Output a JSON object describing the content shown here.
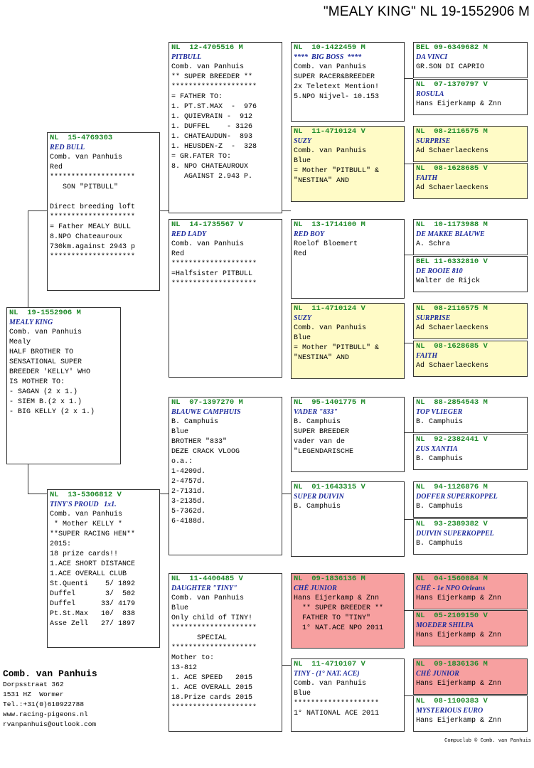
{
  "title": "\"MEALY KING\"  NL  19-1552906 M",
  "boxes": {
    "subject": {
      "ring": "NL  19-1552906 M",
      "name": "MEALY KING",
      "lines": [
        "Comb. van Panhuis",
        "Mealy",
        "HALF BROTHER TO",
        "SENSATIONAL SUPER",
        "BREEDER 'KELLY' WHO",
        "IS MOTHER TO:",
        "- SAGAN (2 x 1.)",
        "- SIEM B.(2 x 1.)",
        "- BIG KELLY (2 x 1.)"
      ]
    },
    "sire": {
      "ring": "NL  15-4769303",
      "name": "RED BULL",
      "lines": [
        "Comb. van Panhuis",
        "Red",
        "********************",
        "   SON \"PITBULL\"",
        "",
        "Direct breeding loft",
        "********************",
        "= Father MEALY BULL",
        "8.NPO Chateauroux",
        "730km.against 2943 p",
        "********************"
      ]
    },
    "dam": {
      "ring": "NL  13-5306812 V",
      "name": "TINY'S PROUD   1x1.",
      "lines": [
        "Comb. van Panhuis",
        " * Mother KELLY *",
        "**SUPER RACING HEN**",
        "2015:",
        "18 prize cards!!",
        "1.ACE SHORT DISTANCE",
        "1.ACE OVERALL CLUB",
        "St.Quenti    5/ 1892",
        "Duffel       3/  502",
        "Duffel      33/ 4179",
        "Pt.St.Max   10/  838",
        "Asse Zell   27/ 1897"
      ]
    },
    "ss": {
      "ring": "NL  12-4705516 M",
      "name": "PITBULL",
      "lines": [
        "Comb. van Panhuis",
        "** SUPER BREEDER **",
        "********************",
        "= FATHER TO:",
        "1. PT.ST.MAX  -  976",
        "1. QUIEVRAIN -  912",
        "1. DUFFEL    - 3126",
        "1. CHATEAUDUN-  893",
        "1. HEUSDEN-Z  -  328",
        "= GR.FATER TO:",
        "8. NPO CHATEAUROUX",
        "   AGAINST 2.943 P."
      ]
    },
    "sd": {
      "ring": "NL  14-1735567 V",
      "name": "RED LADY",
      "lines": [
        "Comb. van Panhuis",
        "Red",
        "********************",
        "=Halfsister PITBULL",
        "********************"
      ]
    },
    "ds": {
      "ring": "NL  07-1397270 M",
      "name": "BLAUWE CAMPHUIS",
      "lines": [
        "B. Camphuis",
        "Blue",
        "BROTHER \"833\"",
        "DEZE CRACK VLOOG",
        "o.a.:",
        "1-4209d.",
        "2-4757d.",
        "2-7131d.",
        "3-2135d.",
        "5-7362d.",
        "6-4188d."
      ]
    },
    "dd": {
      "ring": "NL  11-4400485 V",
      "name": "DAUGHTER \"TINY\"",
      "lines": [
        "Comb. van Panhuis",
        "Blue",
        "Only child of TINY!",
        "********************",
        "      SPECIAL",
        "********************",
        "Mother to:",
        "13-812",
        "1. ACE SPEED   2015",
        "1. ACE OVERALL 2015",
        "18.Prize cards 2015",
        "********************"
      ]
    },
    "sss": {
      "ring": "NL  10-1422459 M",
      "name": "****  BIG BOSS  ****",
      "lines": [
        "Comb. van Panhuis",
        "SUPER RACER&BREEDER",
        "2x Teletext Mention!",
        "5.NPO Nijvel- 10.153"
      ]
    },
    "ssd": {
      "ring": "NL  11-4710124 V",
      "name": "SUZY",
      "lines": [
        "Comb. van Panhuis",
        "Blue",
        "= Mother \"PITBULL\" &",
        "\"NESTINA\" AND"
      ]
    },
    "sds": {
      "ring": "NL  13-1714100 M",
      "name": "RED BOY",
      "lines": [
        "Roelof Bloemert",
        "Red"
      ]
    },
    "sdd": {
      "ring": "NL  11-4710124 V",
      "name": "SUZY",
      "lines": [
        "Comb. van Panhuis",
        "Blue",
        "= Mother \"PITBULL\" &",
        "\"NESTINA\" AND"
      ]
    },
    "dss": {
      "ring": "NL  95-1401775 M",
      "name": "VADER \"833\"",
      "lines": [
        "B. Camphuis",
        "SUPER BREEDER",
        "vader van de",
        "\"LEGENDARISCHE"
      ]
    },
    "dsd": {
      "ring": "NL  01-1643315 V",
      "name": "SUPER DUIVIN",
      "lines": [
        "B. Camphuis"
      ]
    },
    "dds": {
      "ring": "NL  09-1836136 M",
      "name": "CHÉ JUNIOR",
      "lines": [
        "Hans Eijerkamp & Znn",
        "  ** SUPER BREEDER **",
        "  FATHER TO \"TINY\"",
        "  1° NAT.ACE NPO 2011"
      ]
    },
    "ddd": {
      "ring": "NL  11-4710107 V",
      "name": "TINY - (1° NAT. ACE)",
      "lines": [
        "Comb. van Panhuis",
        "Blue",
        "********************",
        "1° NATIONAL ACE 2011"
      ]
    },
    "g1": {
      "ring": "BEL 09-6349682 M",
      "name": "DA VINCI",
      "lines": [
        "GR.SON DI CAPRIO"
      ]
    },
    "g2": {
      "ring": "NL  07-1370797 V",
      "name": "ROSULA",
      "lines": [
        "Hans Eijerkamp & Znn"
      ]
    },
    "g3": {
      "ring": "NL  08-2116575 M",
      "name": "SURPRISE",
      "lines": [
        "Ad Schaerlaeckens"
      ]
    },
    "g4": {
      "ring": "NL  08-1628685 V",
      "name": "FAITH",
      "lines": [
        "Ad Schaerlaeckens"
      ]
    },
    "g5": {
      "ring": "NL  10-1173988 M",
      "name": "DE MAKKE BLAUWE",
      "lines": [
        "A. Schra"
      ]
    },
    "g6": {
      "ring": "BEL 11-6332810 V",
      "name": "DE ROOIE 810",
      "lines": [
        "Walter de Rijck"
      ]
    },
    "g7": {
      "ring": "NL  08-2116575 M",
      "name": "SURPRISE",
      "lines": [
        "Ad Schaerlaeckens"
      ]
    },
    "g8": {
      "ring": "NL  08-1628685 V",
      "name": "FAITH",
      "lines": [
        "Ad Schaerlaeckens"
      ]
    },
    "g9": {
      "ring": "NL  88-2854543 M",
      "name": "TOP VLIEGER",
      "lines": [
        "B. Camphuis"
      ]
    },
    "g10": {
      "ring": "NL  92-2382441 V",
      "name": "ZUS XANTIA",
      "lines": [
        "B. Camphuis"
      ]
    },
    "g11": {
      "ring": "NL  94-1126876 M",
      "name": "DOFFER SUPERKOPPEL",
      "lines": [
        "B. Camphuis"
      ]
    },
    "g12": {
      "ring": "NL  93-2389382 V",
      "name": "DUIVIN SUPERKOPPEL",
      "lines": [
        "B. Camphuis"
      ]
    },
    "g13": {
      "ring": "NL  04-1560084 M",
      "name": "CHÉ - 1e NPO Orleans",
      "lines": [
        "Hans Eijerkamp & Znn"
      ]
    },
    "g14": {
      "ring": "NL  05-2109150 V",
      "name": "MOEDER SHILPA",
      "lines": [
        "Hans Eijerkamp & Znn"
      ]
    },
    "g15": {
      "ring": "NL  09-1836136 M",
      "name": "CHÉ JUNIOR",
      "lines": [
        "Hans Eijerkamp & Znn"
      ]
    },
    "g16": {
      "ring": "NL  08-1100383 V",
      "name": "MYSTERIOUS EURO",
      "lines": [
        "Hans Eijerkamp & Znn"
      ]
    }
  },
  "owner": {
    "name": "Comb. van Panhuis",
    "lines": [
      "Dorpsstraat 362",
      "1531 HZ  Wormer",
      "Tel.:+31(0)610922788",
      "www.racing-pigeons.nl",
      "rvanpanhuis@outlook.com"
    ]
  },
  "footer": "Compuclub © Comb. van Panhuis",
  "colors": {
    "ring": "#1f8a2a",
    "name": "#1c2a9c",
    "yellow": "#fffbc6",
    "red": "#f7a0a0"
  }
}
